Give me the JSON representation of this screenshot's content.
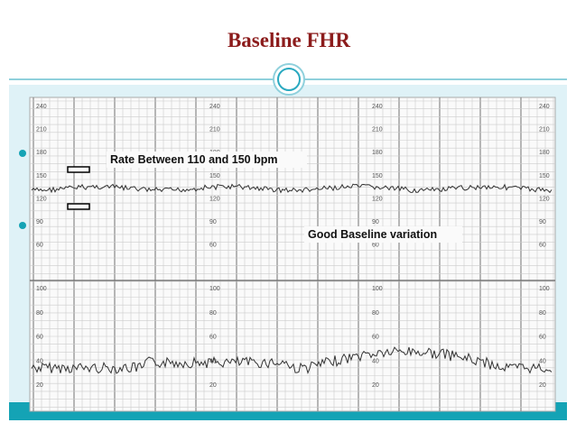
{
  "slide": {
    "title": "Baseline FHR",
    "trace": {
      "upper_scale": [
        "240",
        "210",
        "180",
        "150",
        "120",
        "90",
        "60"
      ],
      "lower_scale": [
        "100",
        "80",
        "60",
        "40",
        "20"
      ],
      "annotations": [
        "Rate Between 110 and 150 bpm",
        "Good Baseline variation"
      ]
    }
  }
}
